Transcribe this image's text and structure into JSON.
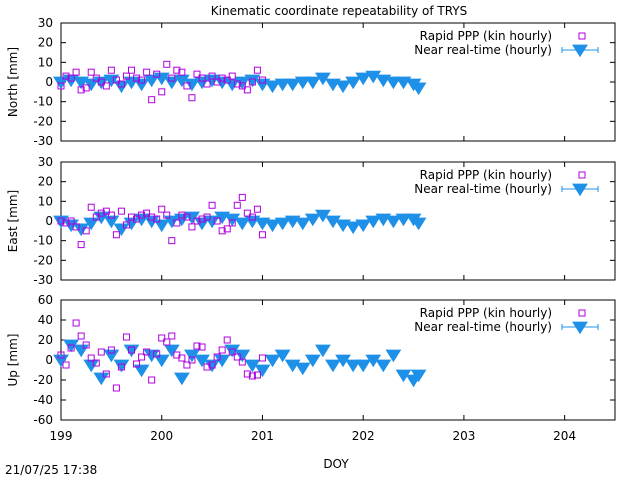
{
  "title": "Kinematic coordinate repeatability of TRYS",
  "xlabel": "DOY",
  "timestamp": "21/07/25 17:38",
  "legend": {
    "rapid": "Rapid PPP (kin hourly)",
    "nrt": "Near real-time (hourly)"
  },
  "colors": {
    "rapid": "#b000e0",
    "nrt": "#1e90e8"
  },
  "chart_data": [
    {
      "type": "scatter",
      "ylabel": "North [mm]",
      "xlim": [
        199,
        204.5
      ],
      "ylim": [
        -30,
        30
      ],
      "xticks": [
        "199",
        "200",
        "201",
        "202",
        "203",
        "204"
      ],
      "yticks": [
        "-30",
        "-20",
        "-10",
        "0",
        "10",
        "20",
        "30"
      ],
      "legend_position": "top-right",
      "series": [
        {
          "name": "Rapid PPP (kin hourly)",
          "marker": "open-square",
          "x": [
            199.0,
            199.05,
            199.1,
            199.15,
            199.2,
            199.25,
            199.3,
            199.35,
            199.4,
            199.45,
            199.5,
            199.55,
            199.6,
            199.65,
            199.7,
            199.75,
            199.8,
            199.85,
            199.9,
            199.95,
            200.0,
            200.05,
            200.1,
            200.15,
            200.2,
            200.25,
            200.3,
            200.35,
            200.4,
            200.45,
            200.5,
            200.55,
            200.6,
            200.65,
            200.7,
            200.75,
            200.8,
            200.85,
            200.9,
            200.95,
            201.0
          ],
          "y": [
            -2,
            3,
            2,
            5,
            -4,
            -3,
            5,
            2,
            0,
            -2,
            6,
            1,
            -1,
            3,
            6,
            2,
            1,
            5,
            -9,
            4,
            -5,
            9,
            2,
            6,
            5,
            -2,
            -8,
            4,
            2,
            -1,
            3,
            0,
            2,
            1,
            3,
            -1,
            -2,
            -4,
            0,
            6,
            1
          ]
        },
        {
          "name": "Near real-time (hourly)",
          "marker": "filled-triangle-down",
          "x": [
            199.0,
            199.1,
            199.2,
            199.3,
            199.4,
            199.5,
            199.6,
            199.7,
            199.8,
            199.9,
            200.0,
            200.1,
            200.2,
            200.3,
            200.4,
            200.5,
            200.6,
            200.7,
            200.8,
            200.9,
            201.0,
            201.1,
            201.2,
            201.3,
            201.4,
            201.5,
            201.6,
            201.7,
            201.8,
            201.9,
            202.0,
            202.1,
            202.2,
            202.3,
            202.4,
            202.5,
            202.55
          ],
          "y": [
            0,
            1,
            0,
            -1,
            0,
            1,
            -2,
            0,
            -1,
            1,
            2,
            0,
            1,
            -1,
            0,
            1,
            0,
            -1,
            0,
            1,
            -1,
            -2,
            -1,
            -1,
            0,
            0,
            2,
            -1,
            -2,
            0,
            2,
            3,
            1,
            0,
            0,
            -1,
            -3
          ]
        }
      ]
    },
    {
      "type": "scatter",
      "ylabel": "East [mm]",
      "xlim": [
        199,
        204.5
      ],
      "ylim": [
        -30,
        30
      ],
      "xticks": [
        "199",
        "200",
        "201",
        "202",
        "203",
        "204"
      ],
      "yticks": [
        "-30",
        "-20",
        "-10",
        "0",
        "10",
        "20",
        "30"
      ],
      "legend_position": "top-right",
      "series": [
        {
          "name": "Rapid PPP (kin hourly)",
          "marker": "open-square",
          "x": [
            199.0,
            199.05,
            199.1,
            199.15,
            199.2,
            199.25,
            199.3,
            199.35,
            199.4,
            199.45,
            199.5,
            199.55,
            199.6,
            199.65,
            199.7,
            199.75,
            199.8,
            199.85,
            199.9,
            199.95,
            200.0,
            200.05,
            200.1,
            200.15,
            200.2,
            200.25,
            200.3,
            200.35,
            200.4,
            200.45,
            200.5,
            200.55,
            200.6,
            200.65,
            200.7,
            200.75,
            200.8,
            200.85,
            200.9,
            200.95,
            201.0
          ],
          "y": [
            0,
            -1,
            0,
            -3,
            -12,
            -5,
            7,
            2,
            4,
            5,
            3,
            -7,
            5,
            -2,
            2,
            1,
            3,
            4,
            2,
            1,
            6,
            3,
            -10,
            -1,
            3,
            2,
            -3,
            0,
            1,
            2,
            8,
            0,
            -5,
            -4,
            -1,
            8,
            12,
            4,
            2,
            6,
            -7
          ]
        },
        {
          "name": "Near real-time (hourly)",
          "marker": "filled-triangle-down",
          "x": [
            199.0,
            199.1,
            199.2,
            199.3,
            199.4,
            199.5,
            199.6,
            199.7,
            199.8,
            199.9,
            200.0,
            200.1,
            200.2,
            200.3,
            200.4,
            200.5,
            200.6,
            200.7,
            200.8,
            200.9,
            201.0,
            201.1,
            201.2,
            201.3,
            201.4,
            201.5,
            201.6,
            201.7,
            201.8,
            201.9,
            202.0,
            202.1,
            202.2,
            202.3,
            202.4,
            202.5,
            202.55
          ],
          "y": [
            0,
            -2,
            -4,
            -1,
            2,
            0,
            -4,
            -1,
            1,
            0,
            -2,
            0,
            1,
            2,
            -1,
            0,
            2,
            1,
            -1,
            0,
            -1,
            -2,
            -1,
            0,
            -1,
            1,
            3,
            0,
            -2,
            -3,
            -2,
            0,
            1,
            0,
            1,
            1,
            -1
          ]
        }
      ]
    },
    {
      "type": "scatter",
      "ylabel": "Up [mm]",
      "xlabel": "DOY",
      "xlim": [
        199,
        204.5
      ],
      "ylim": [
        -60,
        60
      ],
      "xticks": [
        "199",
        "200",
        "201",
        "202",
        "203",
        "204"
      ],
      "yticks": [
        "-60",
        "-40",
        "-20",
        "0",
        "20",
        "40",
        "60"
      ],
      "legend_position": "top-right",
      "series": [
        {
          "name": "Rapid PPP (kin hourly)",
          "marker": "open-square",
          "x": [
            199.0,
            199.05,
            199.1,
            199.15,
            199.2,
            199.25,
            199.3,
            199.35,
            199.4,
            199.45,
            199.5,
            199.55,
            199.6,
            199.65,
            199.7,
            199.75,
            199.8,
            199.85,
            199.9,
            199.95,
            200.0,
            200.05,
            200.1,
            200.15,
            200.2,
            200.25,
            200.3,
            200.35,
            200.4,
            200.45,
            200.5,
            200.55,
            200.6,
            200.65,
            200.7,
            200.75,
            200.8,
            200.85,
            200.9,
            200.95,
            201.0
          ],
          "y": [
            5,
            -5,
            12,
            37,
            24,
            15,
            2,
            -3,
            8,
            -14,
            10,
            -28,
            -7,
            23,
            10,
            -4,
            3,
            8,
            -20,
            6,
            22,
            18,
            24,
            5,
            2,
            -5,
            0,
            14,
            13,
            -7,
            -5,
            3,
            10,
            20,
            8,
            3,
            -2,
            -14,
            -16,
            -15,
            2
          ]
        },
        {
          "name": "Near real-time (hourly)",
          "marker": "filled-triangle-down",
          "x": [
            199.0,
            199.1,
            199.2,
            199.3,
            199.4,
            199.5,
            199.6,
            199.7,
            199.8,
            199.9,
            200.0,
            200.1,
            200.2,
            200.3,
            200.4,
            200.5,
            200.6,
            200.7,
            200.8,
            200.9,
            201.0,
            201.1,
            201.2,
            201.3,
            201.4,
            201.5,
            201.6,
            201.7,
            201.8,
            201.9,
            202.0,
            202.1,
            202.2,
            202.3,
            202.4,
            202.5,
            202.55
          ],
          "y": [
            0,
            15,
            10,
            -5,
            -18,
            5,
            -5,
            10,
            -10,
            5,
            0,
            10,
            -18,
            5,
            0,
            -5,
            0,
            10,
            5,
            -5,
            -10,
            0,
            5,
            -5,
            -8,
            0,
            10,
            -5,
            0,
            -5,
            -5,
            0,
            -5,
            5,
            -15,
            -20,
            -15
          ]
        }
      ]
    }
  ]
}
